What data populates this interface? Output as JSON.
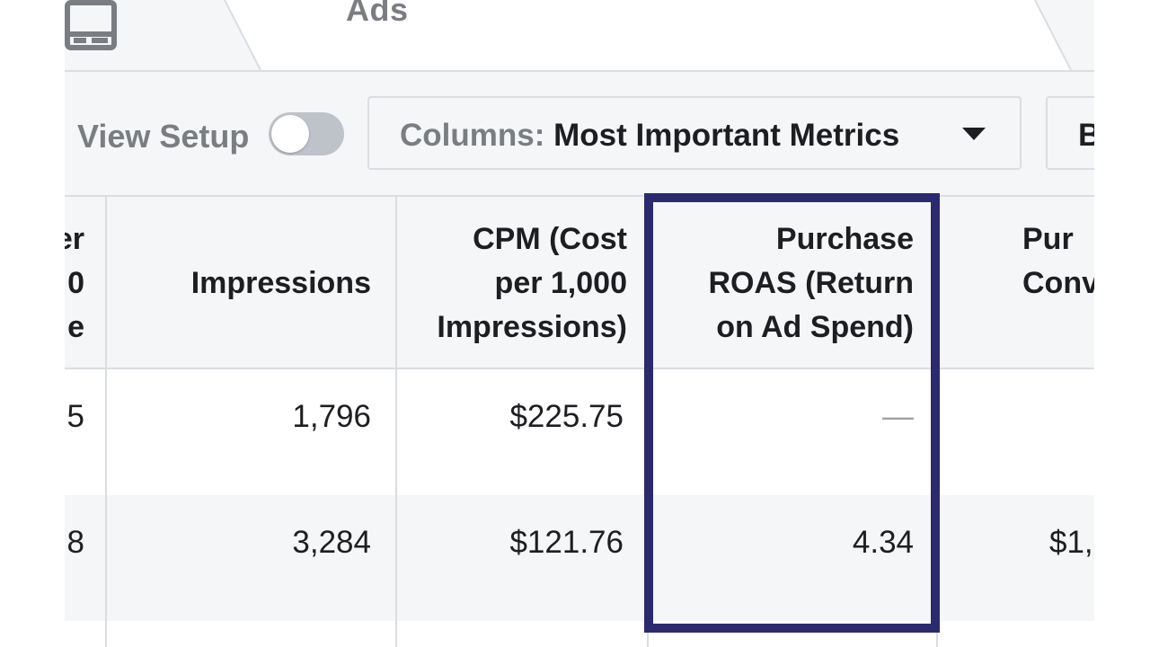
{
  "tabs": {
    "ads_label": "Ads"
  },
  "toolbar": {
    "view_setup_label": "View Setup",
    "view_setup_toggle_on": false,
    "columns_prefix": "Columns:",
    "columns_value": "Most Important Metrics",
    "breakdown_label": "B"
  },
  "table": {
    "headers": {
      "partial_col_lines": [
        "er",
        "0",
        "e"
      ],
      "impressions": "Impressions",
      "cpm_lines": [
        "CPM (Cost",
        "per 1,000",
        "Impressions)"
      ],
      "roas_lines": [
        "Purchase",
        "ROAS (Return",
        "on Ad Spend)"
      ],
      "partial_next_lines": [
        "Pur",
        "Conv"
      ]
    },
    "rows": [
      {
        "partial": "5",
        "impressions": "1,796",
        "cpm": "$225.75",
        "roas": "—",
        "next": ""
      },
      {
        "partial": "8",
        "impressions": "3,284",
        "cpm": "$121.76",
        "roas": "4.34",
        "next": "$1,"
      }
    ]
  },
  "colors": {
    "highlight_border": "#2b2a6e",
    "header_bg": "#f5f6f7",
    "grid_line": "#dadde1",
    "muted_text": "#7a7d82"
  }
}
